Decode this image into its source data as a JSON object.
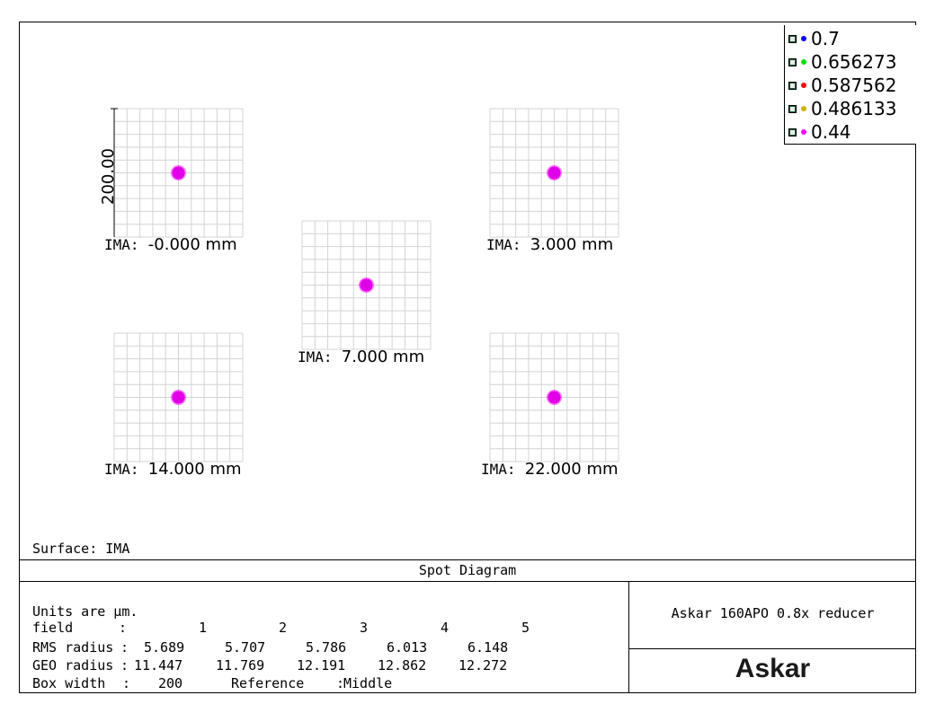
{
  "colors": {
    "grid": "#d4d4d4",
    "spot": "#ff00ff",
    "spot_core": "#e000e8"
  },
  "legend": [
    {
      "label": "0.7",
      "color": "#0000ff"
    },
    {
      "label": "0.656273",
      "color": "#00e000"
    },
    {
      "label": "0.587562",
      "color": "#ff0000"
    },
    {
      "label": "0.486133",
      "color": "#c8b400"
    },
    {
      "label": "0.44",
      "color": "#ff00ff"
    }
  ],
  "scale_label": "200.00",
  "fields": [
    {
      "key": "IMA:",
      "value": "-0.000 mm"
    },
    {
      "key": "IMA:",
      "value": "3.000 mm"
    },
    {
      "key": "IMA:",
      "value": "7.000 mm"
    },
    {
      "key": "IMA:",
      "value": "14.000 mm"
    },
    {
      "key": "IMA:",
      "value": "22.000 mm"
    }
  ],
  "surface_label": "Surface: IMA",
  "title": "Spot Diagram",
  "stats": {
    "units": "Units are µm.",
    "field_label": "field",
    "field_colon": ":",
    "field_numbers": [
      "1",
      "2",
      "3",
      "4",
      "5"
    ],
    "rms_label": "RMS radius",
    "rms_colon": ":",
    "rms_values": [
      "5.689",
      "5.707",
      "5.786",
      "6.013",
      "6.148"
    ],
    "geo_label": "GEO radius",
    "geo_colon": ":",
    "geo_values": [
      "11.447",
      "11.769",
      "12.191",
      "12.862",
      "12.272"
    ],
    "box_label": "Box width",
    "box_colon": ":",
    "box_value": "200",
    "ref_label": "Reference",
    "ref_colon": ":",
    "ref_value": "Middle"
  },
  "lens_name": "Askar 160APO 0.8x reducer",
  "logo_text": "Askar"
}
